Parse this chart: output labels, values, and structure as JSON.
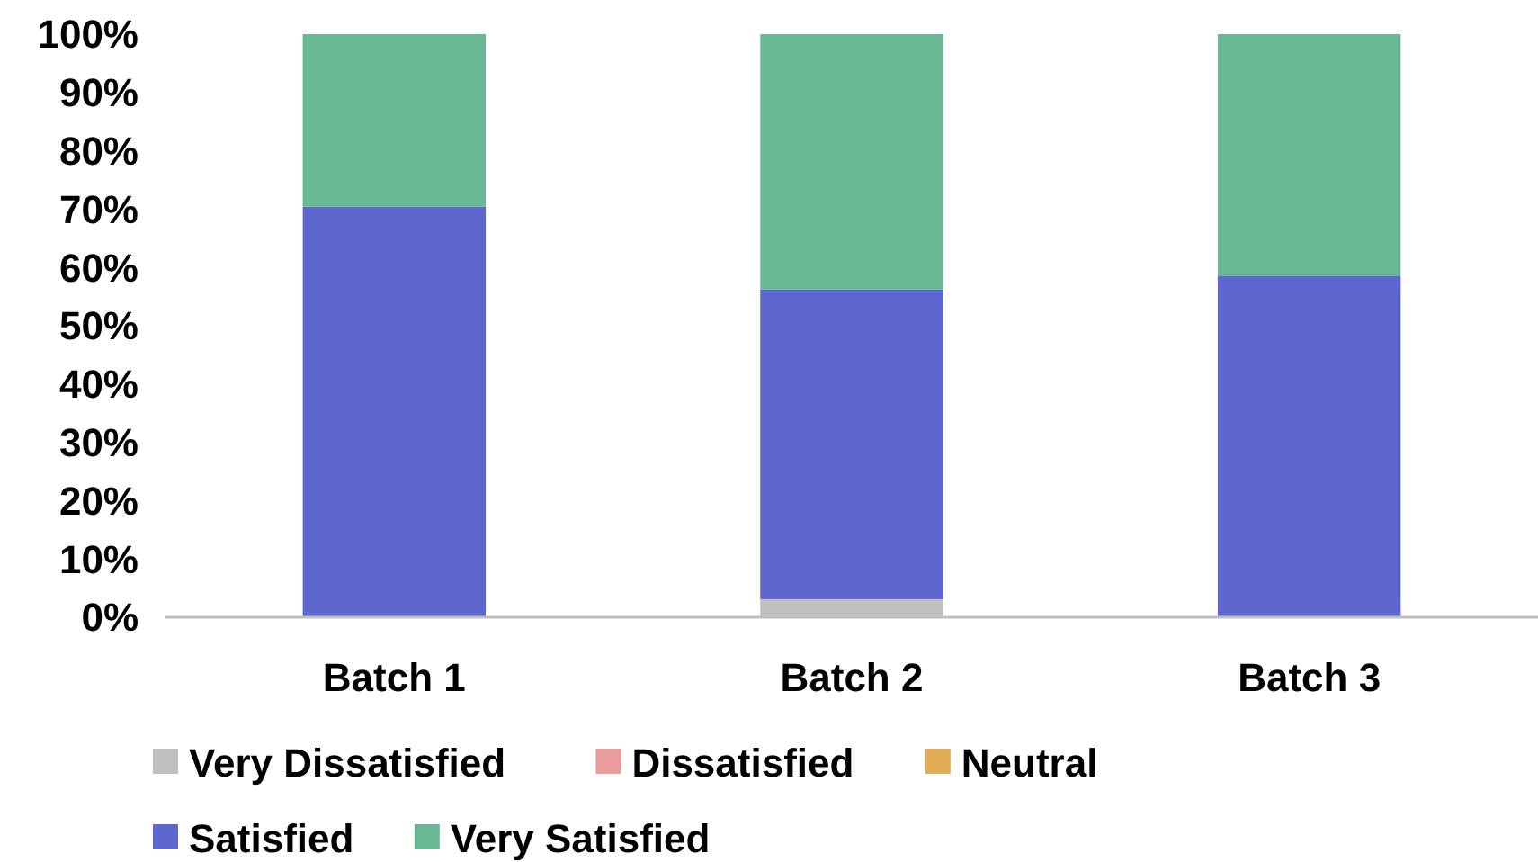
{
  "chart_data": {
    "type": "bar",
    "stacked": true,
    "categories": [
      "Batch 1",
      "Batch 2",
      "Batch 3"
    ],
    "series": [
      {
        "name": "Very Dissatisfied",
        "color": "#bfbfbf",
        "values": [
          0,
          3.1,
          0
        ]
      },
      {
        "name": "Dissatisfied",
        "color": "#e89c9c",
        "values": [
          0,
          0,
          0
        ]
      },
      {
        "name": "Neutral",
        "color": "#e0ac55",
        "values": [
          0,
          0,
          0
        ]
      },
      {
        "name": "Satisfied",
        "color": "#5e67cd",
        "values": [
          70.4,
          53.1,
          58.6
        ]
      },
      {
        "name": "Very Satisfied",
        "color": "#68b896",
        "values": [
          29.6,
          43.8,
          41.4
        ]
      }
    ],
    "ylim": [
      0,
      100
    ],
    "yticks": [
      {
        "value": 0,
        "label": "0%"
      },
      {
        "value": 10,
        "label": "10%"
      },
      {
        "value": 20,
        "label": "20%"
      },
      {
        "value": 30,
        "label": "30%"
      },
      {
        "value": 40,
        "label": "40%"
      },
      {
        "value": 50,
        "label": "50%"
      },
      {
        "value": 60,
        "label": "60%"
      },
      {
        "value": 70,
        "label": "70%"
      },
      {
        "value": 80,
        "label": "80%"
      },
      {
        "value": 90,
        "label": "90%"
      },
      {
        "value": 100,
        "label": "100%"
      }
    ],
    "grid": false,
    "legend": "bottom"
  }
}
